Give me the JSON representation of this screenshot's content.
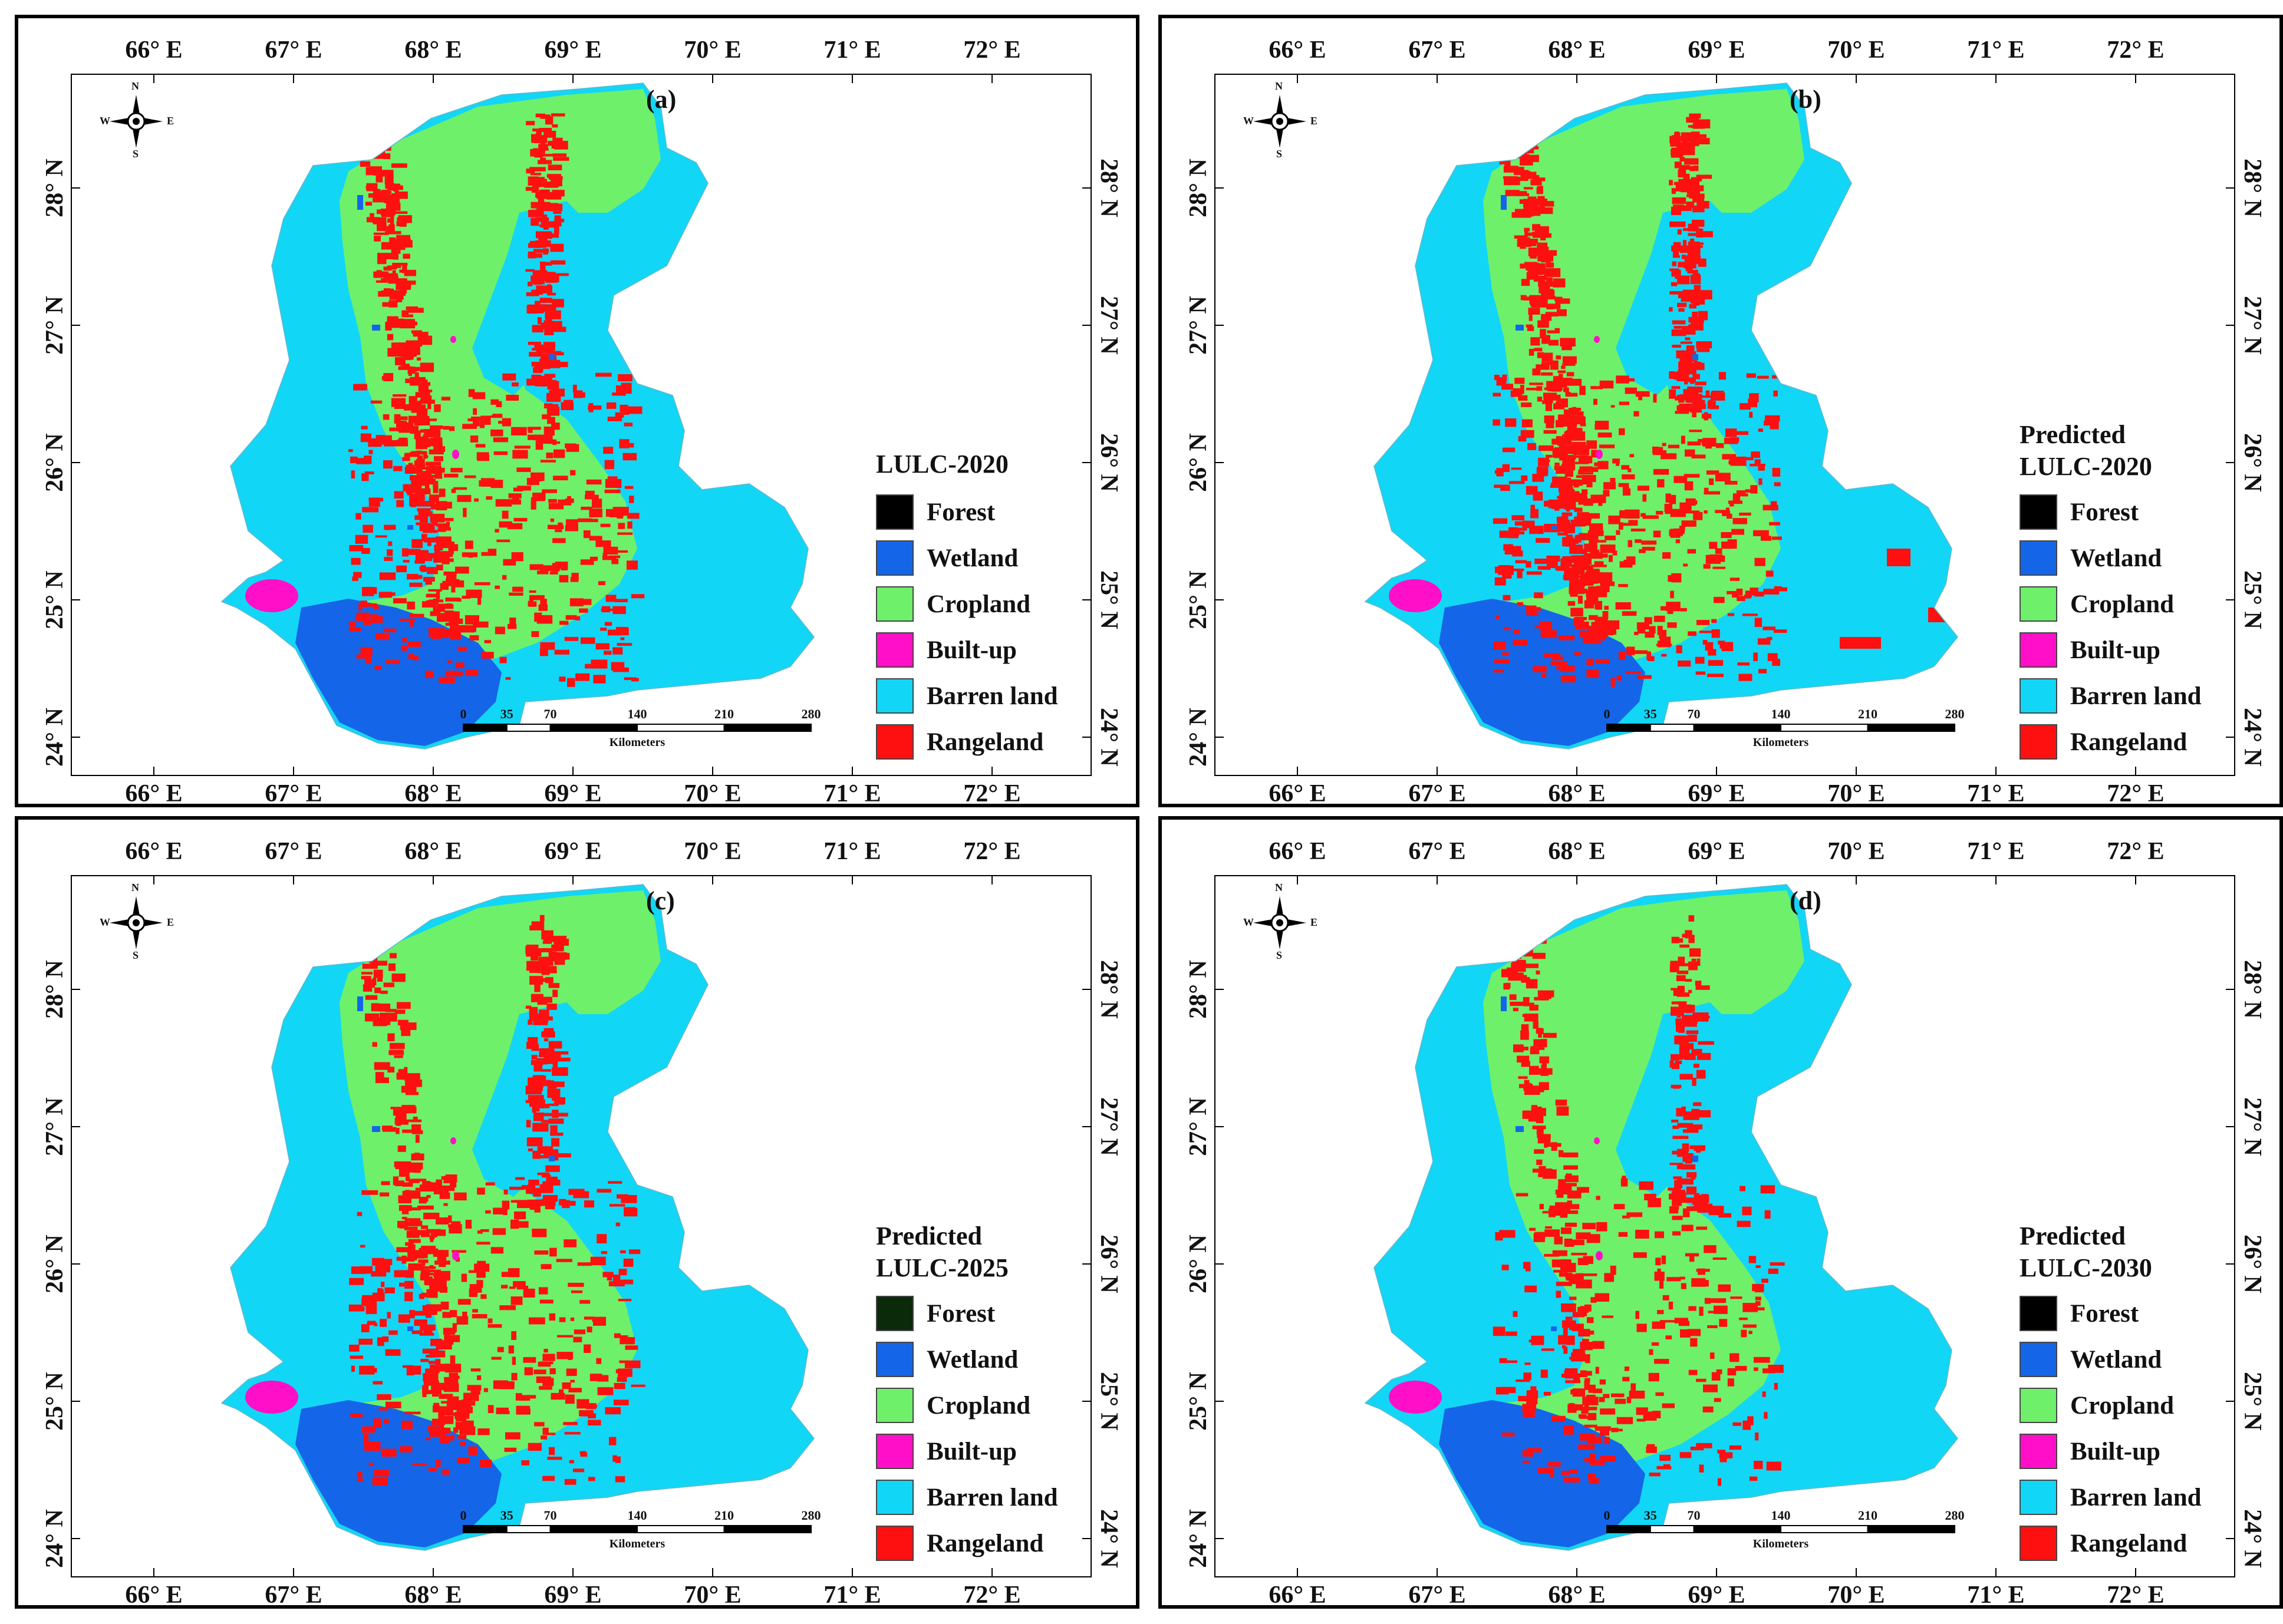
{
  "axes": {
    "x_ticks": [
      "66° E",
      "67° E",
      "68° E",
      "69° E",
      "70° E",
      "71° E",
      "72° E"
    ],
    "y_ticks": [
      "28° N",
      "27° N",
      "26° N",
      "25° N",
      "24° N"
    ]
  },
  "compass": {
    "n": "N",
    "s": "S",
    "e": "E",
    "w": "W"
  },
  "scale_bar": {
    "numbers": [
      "0",
      "35",
      "70",
      "140",
      "210",
      "280"
    ],
    "unit": "Kilometers"
  },
  "legend_items": [
    {
      "label": "Forest",
      "color": "#000000"
    },
    {
      "label": "Wetland",
      "color": "#1565e8"
    },
    {
      "label": "Cropland",
      "color": "#6ef06a"
    },
    {
      "label": "Built-up",
      "color": "#ff10c8"
    },
    {
      "label": "Barren land",
      "color": "#12d6f5"
    },
    {
      "label": "Rangeland",
      "color": "#ff1010"
    }
  ],
  "colors": {
    "barren": "#12d6f5",
    "cropland": "#6ef06a",
    "rangeland": "#ff1010",
    "wetland": "#1565e8",
    "builtup": "#ff10c8"
  },
  "panels": [
    {
      "label": "(a)",
      "title_lines": [
        "LULC-2020"
      ]
    },
    {
      "label": "(b)",
      "title_lines": [
        "Predicted",
        "LULC-2020"
      ]
    },
    {
      "label": "(c)",
      "title_lines": [
        "Predicted",
        "LULC-2025"
      ]
    },
    {
      "label": "(d)",
      "title_lines": [
        "Predicted",
        "LULC-2030"
      ]
    }
  ]
}
